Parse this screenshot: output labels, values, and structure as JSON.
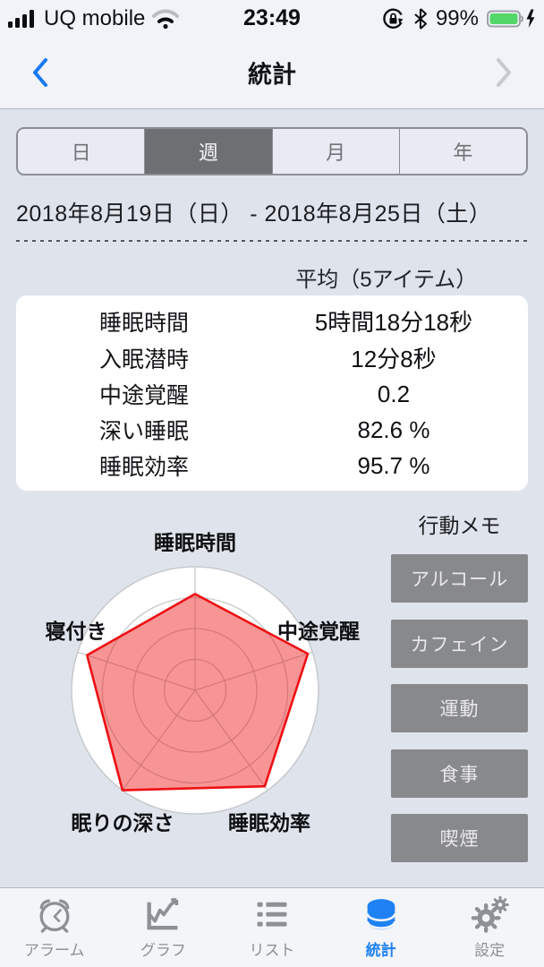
{
  "status_bar": {
    "carrier": "UQ mobile",
    "time": "23:49",
    "battery_percent": "99%",
    "battery_color": "#53d769",
    "icons": [
      "cellular-signal-icon",
      "wifi-icon",
      "rotation-lock-icon",
      "bluetooth-icon",
      "battery-icon",
      "charging-bolt-icon"
    ]
  },
  "nav": {
    "title": "統計"
  },
  "period_tabs": {
    "options": [
      "日",
      "週",
      "月",
      "年"
    ],
    "selected": "週",
    "selected_color": "#6e6f73"
  },
  "date_range": "2018年8月19日（日） - 2018年8月25日（土）",
  "summary": {
    "header": "平均（5アイテム）",
    "rows": [
      {
        "label": "睡眠時間",
        "value": "5時間18分18秒"
      },
      {
        "label": "入眠潜時",
        "value": "12分8秒"
      },
      {
        "label": "中途覚醒",
        "value": "0.2"
      },
      {
        "label": "深い睡眠",
        "value": "82.6 %"
      },
      {
        "label": "睡眠効率",
        "value": "95.7 %"
      }
    ]
  },
  "chart_data": {
    "type": "radar",
    "axes": [
      "睡眠時間",
      "中途覚醒",
      "睡眠効率",
      "眠りの深さ",
      "寝付き"
    ],
    "values": [
      0.78,
      0.96,
      0.96,
      1.0,
      0.92
    ],
    "max": 1.0,
    "rings": 4,
    "grid": "concentric-circles-with-spokes",
    "fill_color": "rgba(238,20,20,0.45)",
    "stroke_color": "#ee1014",
    "background_circle_color": "#ffffff",
    "grid_line_color": "#c7c9cd"
  },
  "action_memo": {
    "title": "行動メモ",
    "buttons": [
      "アルコール",
      "カフェイン",
      "運動",
      "食事",
      "喫煙"
    ],
    "button_color": "#88898d"
  },
  "tab_bar": {
    "active_color": "#1e82f5",
    "inactive_color": "#8f9095",
    "items": [
      {
        "label": "アラーム",
        "icon": "alarm-clock-icon",
        "active": false
      },
      {
        "label": "グラフ",
        "icon": "line-chart-icon",
        "active": false
      },
      {
        "label": "リスト",
        "icon": "list-icon",
        "active": false
      },
      {
        "label": "統計",
        "icon": "database-icon",
        "active": true
      },
      {
        "label": "設定",
        "icon": "gear-icon",
        "active": false
      }
    ]
  }
}
